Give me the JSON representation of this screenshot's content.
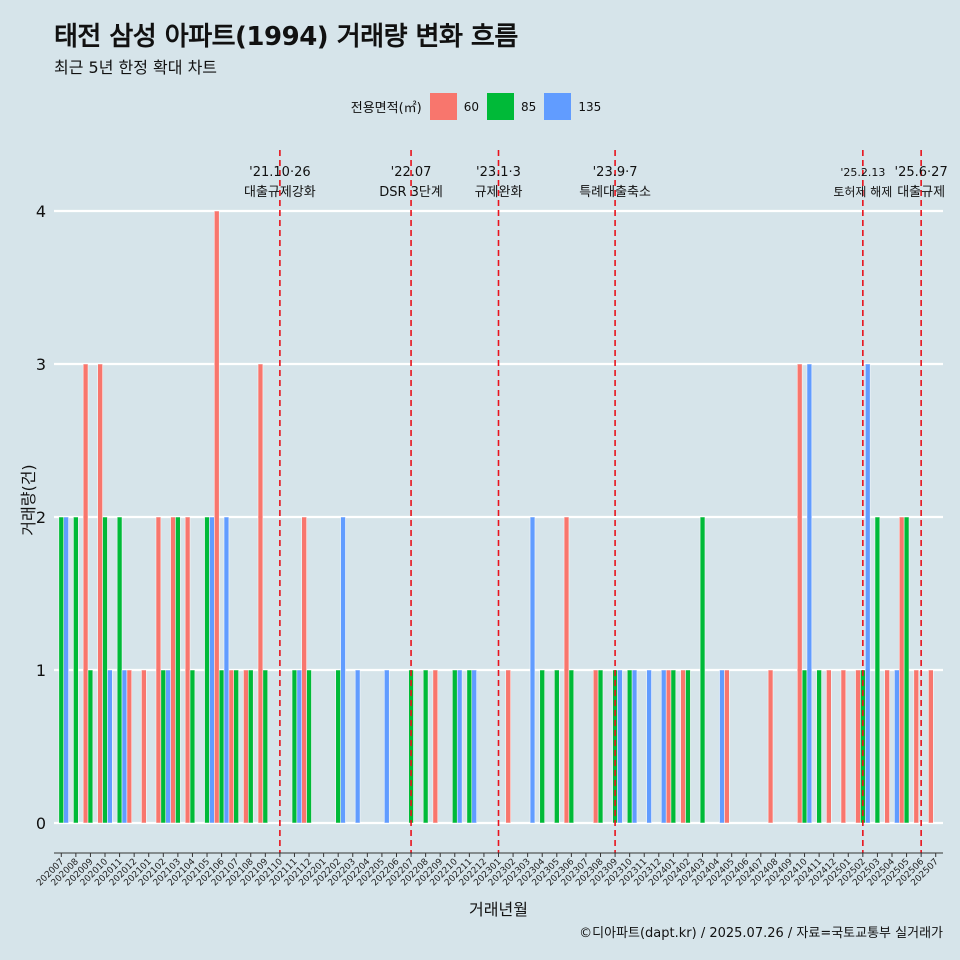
{
  "header": {
    "title": "태전 삼성 아파트(1994) 거래량 변화 흐름",
    "subtitle": "최근 5년 한정 확대 차트"
  },
  "legend": {
    "title": "전용면적(㎡)",
    "items": [
      {
        "label": "60",
        "color": "#F8766D"
      },
      {
        "label": "85",
        "color": "#00BA38"
      },
      {
        "label": "135",
        "color": "#619CFF"
      }
    ]
  },
  "footer": "©디아파트(dapt.kr) / 2025.07.26 / 자료=국토교통부 실거래가",
  "chart_data": {
    "type": "bar",
    "xlabel": "거래년월",
    "ylabel": "거래량(건)",
    "ylim": [
      0,
      4
    ],
    "yticks": [
      0,
      1,
      2,
      3,
      4
    ],
    "grid": true,
    "legend_position": "top",
    "categories": [
      "202007",
      "202008",
      "202009",
      "202010",
      "202011",
      "202012",
      "202101",
      "202102",
      "202103",
      "202104",
      "202105",
      "202106",
      "202107",
      "202108",
      "202109",
      "202110",
      "202111",
      "202112",
      "202201",
      "202202",
      "202203",
      "202204",
      "202205",
      "202206",
      "202207",
      "202208",
      "202209",
      "202210",
      "202211",
      "202212",
      "202301",
      "202302",
      "202303",
      "202304",
      "202305",
      "202306",
      "202307",
      "202308",
      "202309",
      "202310",
      "202311",
      "202312",
      "202401",
      "202402",
      "202403",
      "202404",
      "202405",
      "202406",
      "202407",
      "202408",
      "202409",
      "202410",
      "202411",
      "202412",
      "202501",
      "202502",
      "202503",
      "202504",
      "202505",
      "202506",
      "202507"
    ],
    "series": [
      {
        "name": "60",
        "color": "#F8766D",
        "values": [
          0,
          0,
          3,
          3,
          0,
          1,
          1,
          2,
          2,
          2,
          0,
          4,
          1,
          1,
          3,
          0,
          0,
          2,
          0,
          0,
          0,
          0,
          0,
          0,
          0,
          0,
          1,
          0,
          0,
          0,
          0,
          1,
          0,
          0,
          0,
          2,
          0,
          1,
          0,
          0,
          0,
          0,
          1,
          1,
          0,
          0,
          1,
          0,
          0,
          1,
          0,
          3,
          0,
          1,
          1,
          1,
          0,
          1,
          2,
          1,
          1
        ]
      },
      {
        "name": "85",
        "color": "#00BA38",
        "values": [
          2,
          2,
          1,
          2,
          2,
          0,
          0,
          1,
          2,
          1,
          2,
          1,
          1,
          1,
          1,
          0,
          1,
          1,
          0,
          1,
          0,
          0,
          0,
          0,
          1,
          1,
          0,
          1,
          1,
          0,
          0,
          0,
          0,
          1,
          1,
          1,
          0,
          1,
          1,
          1,
          0,
          0,
          1,
          1,
          2,
          0,
          0,
          0,
          0,
          0,
          0,
          1,
          1,
          0,
          0,
          1,
          2,
          0,
          2,
          0,
          0
        ]
      },
      {
        "name": "135",
        "color": "#619CFF",
        "values": [
          2,
          0,
          0,
          1,
          1,
          0,
          0,
          1,
          0,
          0,
          2,
          2,
          0,
          0,
          0,
          0,
          1,
          0,
          0,
          2,
          1,
          0,
          1,
          0,
          0,
          0,
          0,
          1,
          1,
          0,
          0,
          0,
          2,
          0,
          0,
          0,
          0,
          0,
          1,
          1,
          1,
          1,
          0,
          0,
          0,
          1,
          0,
          0,
          0,
          0,
          0,
          3,
          0,
          0,
          0,
          3,
          0,
          1,
          0,
          0,
          0
        ]
      }
    ],
    "annotations": [
      {
        "date": "'21.10·26",
        "label": "대출규제강화",
        "category": "202110"
      },
      {
        "date": "'22.07",
        "label": "DSR 3단계",
        "category": "202207"
      },
      {
        "date": "'23.1·3",
        "label": "규제완화",
        "category": "202301"
      },
      {
        "date": "'23.9·7",
        "label": "특례대출축소",
        "category": "202309"
      },
      {
        "date": "'25.2.13",
        "label": "토허제 해제",
        "category": "202502"
      },
      {
        "date": "'25.6·27",
        "label": "대출규제",
        "category": "202506"
      }
    ]
  }
}
